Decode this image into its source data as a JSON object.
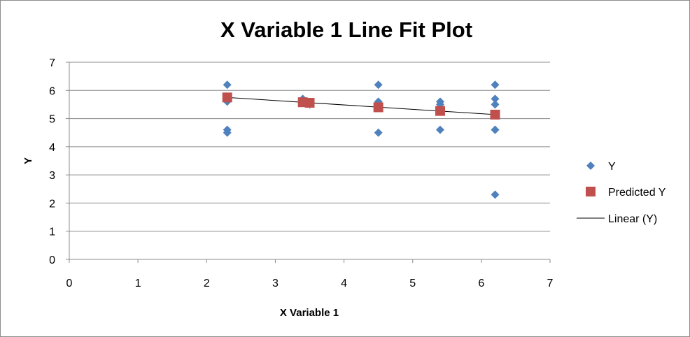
{
  "chart_data": {
    "type": "scatter",
    "title": "X Variable 1 Line Fit  Plot",
    "xlabel": "X Variable 1",
    "ylabel": "Y",
    "xlim": [
      0,
      7
    ],
    "ylim": [
      0,
      7
    ],
    "x_ticks": [
      "0",
      "1",
      "2",
      "3",
      "4",
      "5",
      "6",
      "7"
    ],
    "y_ticks": [
      "0",
      "1",
      "2",
      "3",
      "4",
      "5",
      "6",
      "7"
    ],
    "grid": "horizontal major gridlines",
    "legend_position": "right",
    "series": [
      {
        "name": "Y",
        "marker": "diamond",
        "color": "#4f81bd",
        "x": [
          2.3,
          2.3,
          2.3,
          2.3,
          3.4,
          3.5,
          4.5,
          4.5,
          4.5,
          5.4,
          5.4,
          5.4,
          6.2,
          6.2,
          6.2,
          6.2,
          6.2,
          6.2
        ],
        "y": [
          6.2,
          5.6,
          4.6,
          4.5,
          5.7,
          5.5,
          6.2,
          5.6,
          4.5,
          5.6,
          5.5,
          4.6,
          6.2,
          5.7,
          5.5,
          4.6,
          4.6,
          2.3
        ]
      },
      {
        "name": "Predicted Y",
        "marker": "square",
        "color": "#c0504d",
        "x": [
          2.3,
          3.4,
          3.5,
          4.5,
          5.4,
          6.2
        ],
        "y": [
          5.75,
          5.58,
          5.56,
          5.4,
          5.27,
          5.14
        ]
      },
      {
        "name": "Linear (Y)",
        "marker": "line",
        "color": "#000000",
        "x": [
          2.3,
          6.2
        ],
        "y": [
          5.75,
          5.14
        ]
      }
    ]
  }
}
